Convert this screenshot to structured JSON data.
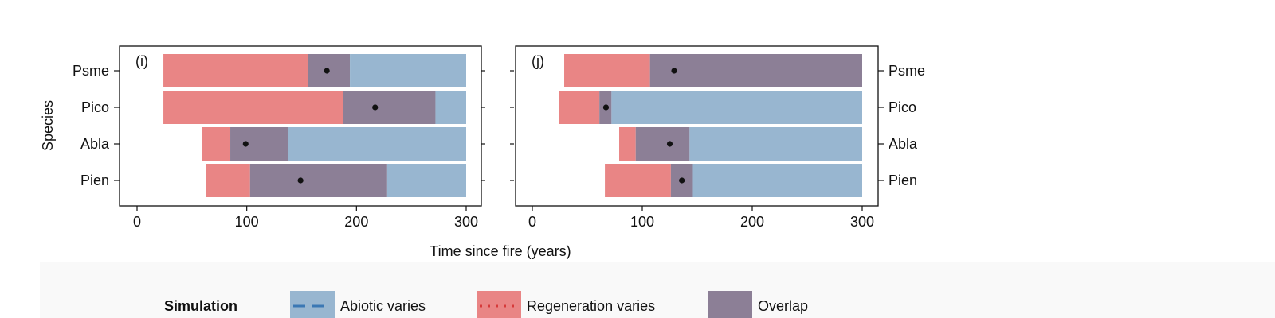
{
  "chart_data": {
    "type": "bar",
    "subtype": "floating-range-bars",
    "shared": {
      "xlabel": "Time since fire (years)",
      "ylabel": "Species",
      "xlim": [
        0,
        300
      ],
      "xticks": [
        0,
        100,
        200,
        300
      ],
      "categories": [
        "Psme",
        "Pico",
        "Abla",
        "Pien"
      ]
    },
    "panels": [
      {
        "label": "(i)",
        "ytick_side": "left",
        "rows": [
          {
            "species": "Psme",
            "regeneration": [
              24,
              156
            ],
            "overlap": [
              156,
              194
            ],
            "abiotic": [
              194,
              300
            ],
            "point": 173
          },
          {
            "species": "Pico",
            "regeneration": [
              24,
              188
            ],
            "overlap": [
              188,
              272
            ],
            "abiotic": [
              272,
              300
            ],
            "point": 217
          },
          {
            "species": "Abla",
            "regeneration": [
              59,
              85
            ],
            "overlap": [
              85,
              138
            ],
            "abiotic": [
              138,
              300
            ],
            "point": 99
          },
          {
            "species": "Pien",
            "regeneration": [
              63,
              103
            ],
            "overlap": [
              103,
              228
            ],
            "abiotic": [
              228,
              300
            ],
            "point": 149
          }
        ]
      },
      {
        "label": "(j)",
        "ytick_side": "right",
        "rows": [
          {
            "species": "Psme",
            "regeneration": [
              29,
              107
            ],
            "overlap": [
              107,
              300
            ],
            "abiotic": null,
            "point": 129
          },
          {
            "species": "Pico",
            "regeneration": [
              24,
              61
            ],
            "overlap": [
              61,
              72
            ],
            "abiotic": [
              72,
              300
            ],
            "point": 67
          },
          {
            "species": "Abla",
            "regeneration": [
              79,
              94
            ],
            "overlap": [
              94,
              143
            ],
            "abiotic": [
              143,
              300
            ],
            "point": 125
          },
          {
            "species": "Pien",
            "regeneration": [
              66,
              126
            ],
            "overlap": [
              126,
              146
            ],
            "abiotic": [
              146,
              300
            ],
            "point": 136
          }
        ]
      }
    ],
    "legend": {
      "title": "Simulation",
      "placement": "bottom",
      "items": [
        {
          "key": "abiotic",
          "label": "Abiotic varies",
          "color": "#98b6d0",
          "line_color": "#3b78b4",
          "line_style": "dashed"
        },
        {
          "key": "regeneration",
          "label": "Regeneration varies",
          "color": "#e98585",
          "line_color": "#d63a3a",
          "line_style": "dotted"
        },
        {
          "key": "overlap",
          "label": "Overlap",
          "color": "#8c7f96",
          "line_color": null,
          "line_style": null
        }
      ]
    }
  },
  "colors": {
    "abiotic": "#98b6d0",
    "regeneration": "#e98585",
    "overlap": "#8c7f96",
    "point": "#111111",
    "legend_band": "#f9f9f9"
  }
}
